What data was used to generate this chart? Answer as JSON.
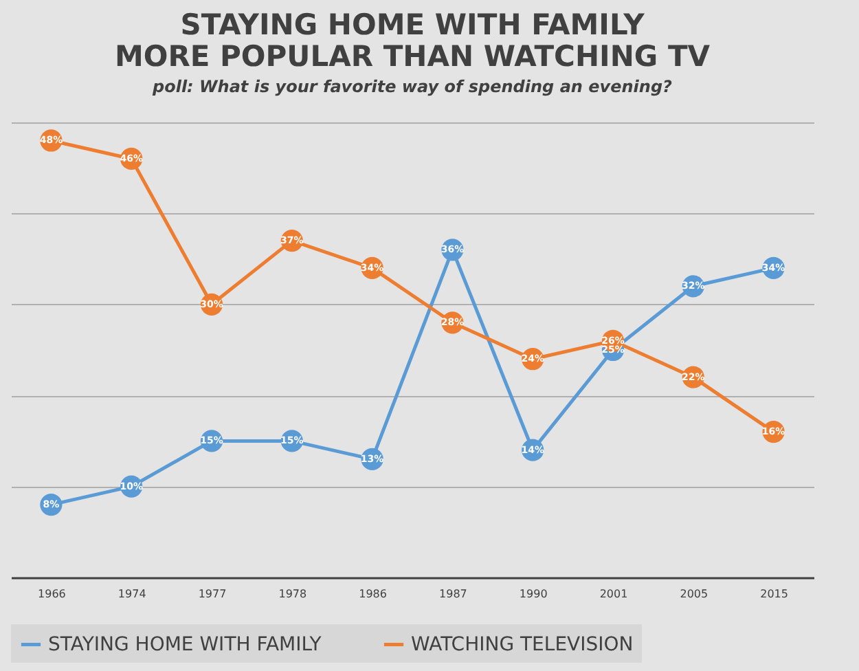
{
  "chart_data": {
    "type": "line",
    "title": "STAYING HOME WITH FAMILY\nMORE POPULAR THAN WATCHING TV",
    "subtitle": "poll: What is your favorite way of spending an evening?",
    "categories": [
      "1966",
      "1974",
      "1977",
      "1978",
      "1986",
      "1987",
      "1990",
      "2001",
      "2005",
      "2015"
    ],
    "series": [
      {
        "name": "STAYING HOME WITH FAMILY",
        "color": "#5b9bd5",
        "values": [
          8,
          10,
          15,
          15,
          13,
          36,
          14,
          25,
          32,
          34
        ],
        "value_labels": [
          "8%",
          "10%",
          "15%",
          "15%",
          "13%",
          "36%",
          "14%",
          "25%",
          "32%",
          "34%"
        ]
      },
      {
        "name": "WATCHING TELEVISION",
        "color": "#ed7d31",
        "values": [
          48,
          46,
          30,
          37,
          34,
          28,
          24,
          26,
          22,
          16
        ],
        "value_labels": [
          "48%",
          "46%",
          "30%",
          "37%",
          "34%",
          "28%",
          "24%",
          "26%",
          "22%",
          "16%"
        ]
      }
    ],
    "tick_labels": "x",
    "grid": "y",
    "legend": "bottom",
    "marker": "circle",
    "line_style": "solid"
  }
}
